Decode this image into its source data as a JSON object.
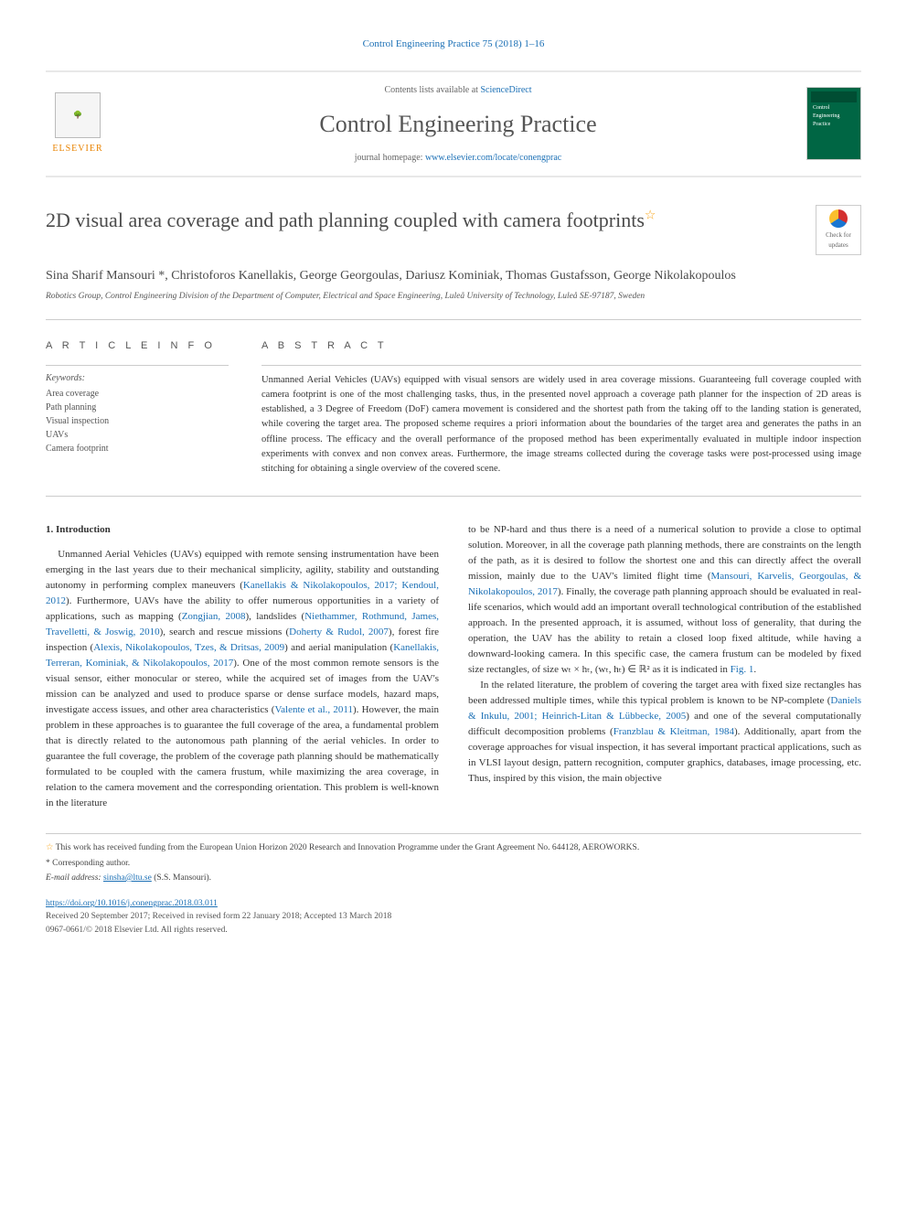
{
  "journal_ref": "Control Engineering Practice 75 (2018) 1–16",
  "header": {
    "contents_prefix": "Contents lists available at ",
    "contents_link": "ScienceDirect",
    "journal_name": "Control Engineering Practice",
    "homepage_prefix": "journal homepage: ",
    "homepage_link": "www.elsevier.com/locate/conengprac",
    "elsevier_label": "ELSEVIER",
    "cover_text": "Control Engineering Practice"
  },
  "check_updates": "Check for updates",
  "title": "2D visual area coverage and path planning coupled with camera footprints",
  "title_star": "☆",
  "authors": "Sina Sharif Mansouri *, Christoforos Kanellakis, George Georgoulas, Dariusz Kominiak, Thomas Gustafsson, George Nikolakopoulos",
  "affiliation": "Robotics Group, Control Engineering Division of the Department of Computer, Electrical and Space Engineering, Luleå University of Technology, Luleå SE-97187, Sweden",
  "info_heading": "A R T I C L E   I N F O",
  "abstract_heading": "A B S T R A C T",
  "keywords_label": "Keywords:",
  "keywords": [
    "Area coverage",
    "Path planning",
    "Visual inspection",
    "UAVs",
    "Camera footprint"
  ],
  "abstract": "Unmanned Aerial Vehicles (UAVs) equipped with visual sensors are widely used in area coverage missions. Guaranteeing full coverage coupled with camera footprint is one of the most challenging tasks, thus, in the presented novel approach a coverage path planner for the inspection of 2D areas is established, a 3 Degree of Freedom (DoF) camera movement is considered and the shortest path from the taking off to the landing station is generated, while covering the target area. The proposed scheme requires a priori information about the boundaries of the target area and generates the paths in an offline process. The efficacy and the overall performance of the proposed method has been experimentally evaluated in multiple indoor inspection experiments with convex and non convex areas. Furthermore, the image streams collected during the coverage tasks were post-processed using image stitching for obtaining a single overview of the covered scene.",
  "section1_heading": "1. Introduction",
  "col1_para": "Unmanned Aerial Vehicles (UAVs) equipped with remote sensing instrumentation have been emerging in the last years due to their mechanical simplicity, agility, stability and outstanding autonomy in performing complex maneuvers (Kanellakis & Nikolakopoulos, 2017; Kendoul, 2012). Furthermore, UAVs have the ability to offer numerous opportunities in a variety of applications, such as mapping (Zongjian, 2008), landslides (Niethammer, Rothmund, James, Travelletti, & Joswig, 2010), search and rescue missions (Doherty & Rudol, 2007), forest fire inspection (Alexis, Nikolakopoulos, Tzes, & Dritsas, 2009) and aerial manipulation (Kanellakis, Terreran, Kominiak, & Nikolakopoulos, 2017). One of the most common remote sensors is the visual sensor, either monocular or stereo, while the acquired set of images from the UAV's mission can be analyzed and used to produce sparse or dense surface models, hazard maps, investigate access issues, and other area characteristics (Valente et al., 2011). However, the main problem in these approaches is to guarantee the full coverage of the area, a fundamental problem that is directly related to the autonomous path planning of the aerial vehicles. In order to guarantee the full coverage, the problem of the coverage path planning should be mathematically formulated to be coupled with the camera frustum, while maximizing the area coverage, in relation to the camera movement and the corresponding orientation. This problem is well-known in the literature",
  "col2_para1": "to be NP-hard and thus there is a need of a numerical solution to provide a close to optimal solution. Moreover, in all the coverage path planning methods, there are constraints on the length of the path, as it is desired to follow the shortest one and this can directly affect the overall mission, mainly due to the UAV's limited flight time (Mansouri, Karvelis, Georgoulas, & Nikolakopoulos, 2017). Finally, the coverage path planning approach should be evaluated in real-life scenarios, which would add an important overall technological contribution of the established approach. In the presented approach, it is assumed, without loss of generality, that during the operation, the UAV has the ability to retain a closed loop fixed altitude, while having a downward-looking camera. In this specific case, the camera frustum can be modeled by fixed size rectangles, of size wₜ × hₜ, (wₜ, hₜ) ∈ ℝ² as it is indicated in Fig. 1.",
  "col2_para2": "In the related literature, the problem of covering the target area with fixed size rectangles has been addressed multiple times, while this typical problem is known to be NP-complete (Daniels & Inkulu, 2001; Heinrich-Litan & Lübbecke, 2005) and one of the several computationally difficult decomposition problems (Franzblau & Kleitman, 1984). Additionally, apart from the coverage approaches for visual inspection, it has several important practical applications, such as in VLSI layout design, pattern recognition, computer graphics, databases, image processing, etc. Thus, inspired by this vision, the main objective",
  "footnotes": {
    "funding": "This work has received funding from the European Union Horizon 2020 Research and Innovation Programme under the Grant Agreement No. 644128, AEROWORKS.",
    "corresponding": "Corresponding author.",
    "email_label": "E-mail address: ",
    "email": "sinsha@ltu.se",
    "email_suffix": " (S.S. Mansouri)."
  },
  "doi": {
    "link": "https://doi.org/10.1016/j.conengprac.2018.03.011",
    "received": "Received 20 September 2017; Received in revised form 22 January 2018; Accepted 13 March 2018",
    "copyright": "0967-0661/© 2018 Elsevier Ltd. All rights reserved."
  },
  "colors": {
    "link": "#1a6fb5",
    "accent_orange": "#e98300",
    "star": "#f9a61a",
    "cover_green": "#006644"
  }
}
